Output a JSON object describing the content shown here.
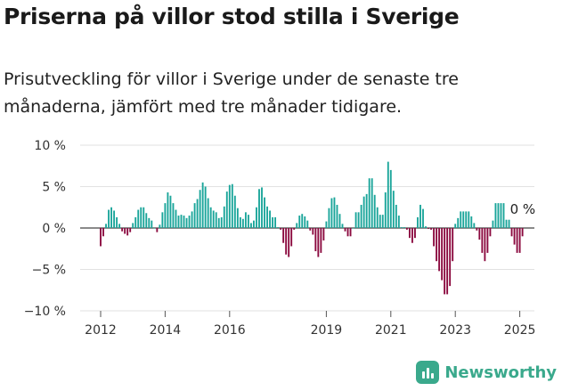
{
  "title": "Priserna på villor stod stilla i Sverige",
  "subtitle": "Prisutveckling för villor i Sverige under de senaste tre månaderna, jämfört med tre månader tidigare.",
  "brand": {
    "name": "Newsworthy",
    "logo_icon": "newsworthy-logo-icon",
    "color": "#3aa98c"
  },
  "chart_data": {
    "type": "bar",
    "colors": {
      "positive": "#1aa59a",
      "negative": "#8b0a3f"
    },
    "ylim": [
      -10,
      10
    ],
    "yticks": [
      {
        "value": 10,
        "label": "10 %"
      },
      {
        "value": 5,
        "label": "5 %"
      },
      {
        "value": 0,
        "label": "0 %"
      },
      {
        "value": -5,
        "label": "−5 %"
      },
      {
        "value": -10,
        "label": "−10 %"
      }
    ],
    "xticks": [
      {
        "value": 2012,
        "label": "2012"
      },
      {
        "value": 2014,
        "label": "2014"
      },
      {
        "value": 2016,
        "label": "2016"
      },
      {
        "value": 2019,
        "label": "2019"
      },
      {
        "value": 2021,
        "label": "2021"
      },
      {
        "value": 2023,
        "label": "2023"
      },
      {
        "value": 2025,
        "label": "2025"
      }
    ],
    "x_start": "2012-01",
    "annotation": {
      "text": "0 %",
      "value": 0
    },
    "values": [
      -2.2,
      -1.0,
      0.5,
      2.2,
      2.5,
      2.1,
      1.3,
      0.5,
      -0.4,
      -0.7,
      -0.9,
      -0.5,
      0.6,
      1.3,
      2.2,
      2.5,
      2.5,
      1.8,
      1.2,
      0.9,
      0.0,
      -0.5,
      0.4,
      1.9,
      3.0,
      4.3,
      3.9,
      3.0,
      2.2,
      1.5,
      1.6,
      1.5,
      1.2,
      1.5,
      2.0,
      3.0,
      3.5,
      4.6,
      5.5,
      5.0,
      3.6,
      2.5,
      2.1,
      1.9,
      1.2,
      1.3,
      2.6,
      4.4,
      5.2,
      5.3,
      3.9,
      2.4,
      1.3,
      1.1,
      1.9,
      1.6,
      0.6,
      0.9,
      2.5,
      4.7,
      4.9,
      3.7,
      2.6,
      2.1,
      1.3,
      1.3,
      0.1,
      -0.2,
      -1.8,
      -3.2,
      -3.5,
      -2.2,
      -0.2,
      0.6,
      1.5,
      1.7,
      1.4,
      0.9,
      -0.3,
      -0.8,
      -2.8,
      -3.5,
      -3.0,
      -1.5,
      0.8,
      2.4,
      3.6,
      3.7,
      2.8,
      1.7,
      0.5,
      -0.4,
      -1.0,
      -1.0,
      0.0,
      1.9,
      1.9,
      2.8,
      3.8,
      4.1,
      6.0,
      6.0,
      4.0,
      2.5,
      1.6,
      1.6,
      4.3,
      8.0,
      7.0,
      4.5,
      2.8,
      1.5,
      0.1,
      0.1,
      -0.2,
      -1.2,
      -1.8,
      -1.2,
      1.3,
      2.8,
      2.3,
      0.2,
      -0.1,
      -0.2,
      -2.2,
      -4.0,
      -5.2,
      -6.3,
      -8.0,
      -8.0,
      -7.0,
      -4.0,
      0.5,
      1.2,
      2.0,
      2.0,
      2.0,
      2.0,
      1.4,
      0.6,
      -0.3,
      -1.4,
      -3.0,
      -4.0,
      -3.0,
      -1.0,
      0.9,
      3.0,
      3.0,
      3.0,
      3.0,
      1.0,
      1.0,
      -1.0,
      -2.0,
      -3.0,
      -3.0,
      -1.0
    ]
  }
}
